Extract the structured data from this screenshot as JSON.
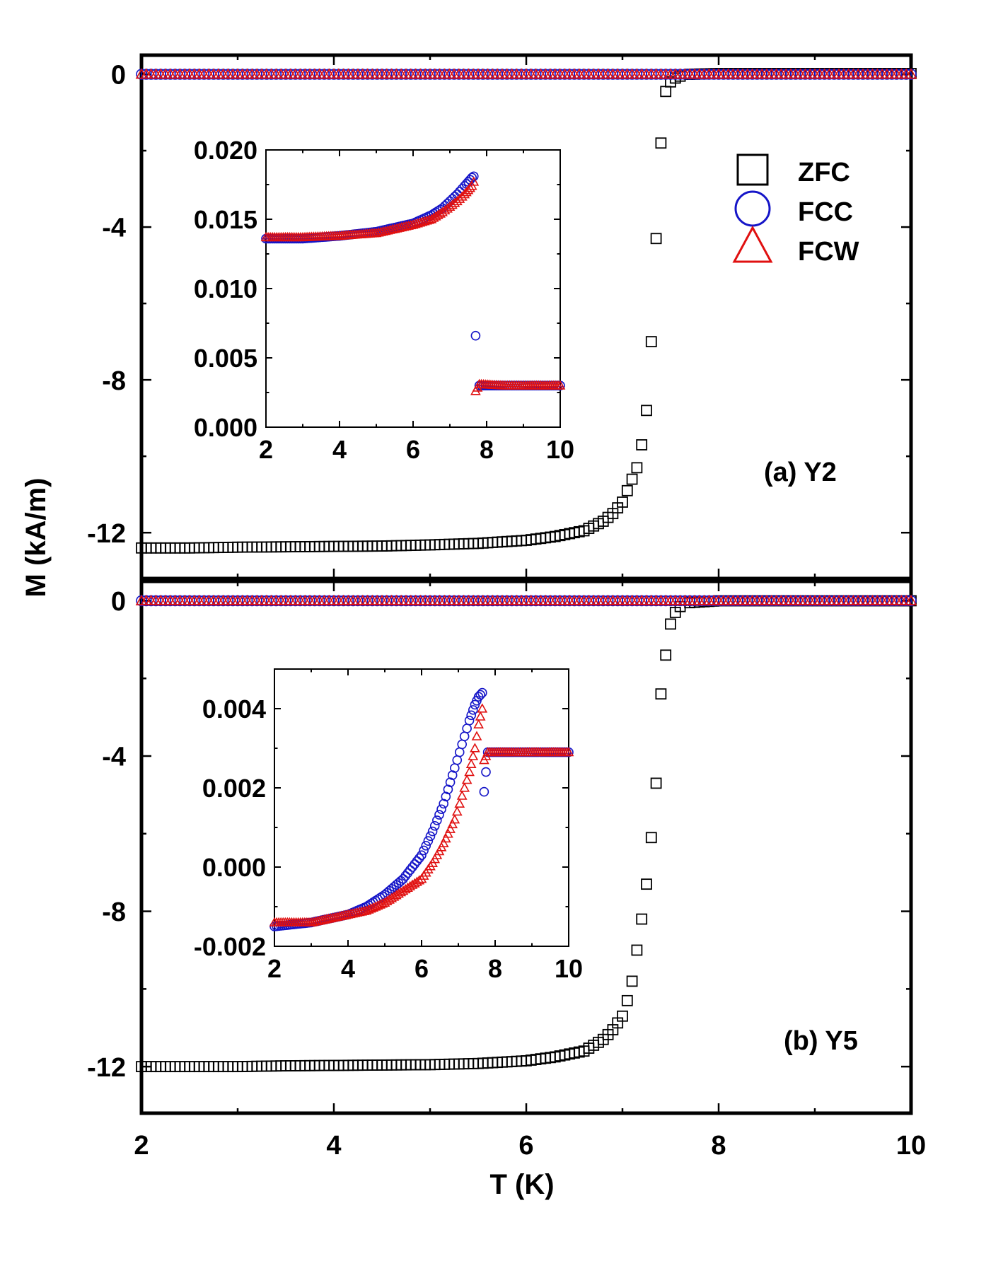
{
  "figure": {
    "ylabel": "M (kA/m)",
    "xlabel": "T (K)",
    "legend": [
      {
        "label": "ZFC",
        "marker": "square",
        "color": "#000000"
      },
      {
        "label": "FCC",
        "marker": "circle",
        "color": "#1515c8"
      },
      {
        "label": "FCW",
        "marker": "triangle",
        "color": "#e01010"
      }
    ]
  },
  "chart_data": [
    {
      "type": "scatter",
      "panel": "(a) Y2",
      "xlim": [
        2,
        10
      ],
      "ylim": [
        -13.2,
        0.5
      ],
      "xticks": [
        2,
        4,
        6,
        8,
        10
      ],
      "yticks": [
        0,
        -4,
        -8,
        -12
      ],
      "xlabel": "T (K)",
      "ylabel": "M (kA/m)",
      "legend_position": "top-right",
      "series": [
        {
          "name": "ZFC",
          "marker": "square",
          "x": [
            2.0,
            2.5,
            3.0,
            3.5,
            4.0,
            4.5,
            5.0,
            5.5,
            6.0,
            6.3,
            6.6,
            6.8,
            6.9,
            7.0,
            7.05,
            7.1,
            7.15,
            7.2,
            7.25,
            7.3,
            7.35,
            7.4,
            7.45,
            7.5,
            7.55,
            7.6,
            7.7,
            8.0,
            10.0
          ],
          "y": [
            -12.4,
            -12.4,
            -12.38,
            -12.37,
            -12.36,
            -12.35,
            -12.32,
            -12.28,
            -12.2,
            -12.1,
            -11.95,
            -11.7,
            -11.5,
            -11.2,
            -10.9,
            -10.6,
            -10.3,
            -9.7,
            -8.8,
            -7.0,
            -4.3,
            -1.8,
            -0.45,
            -0.2,
            -0.1,
            -0.05,
            0.0,
            0.02,
            0.02
          ]
        },
        {
          "name": "FCC",
          "marker": "circle",
          "x": [
            2.0,
            4.0,
            6.0,
            8.0,
            10.0
          ],
          "y": [
            0.0,
            0.0,
            0.0,
            0.0,
            0.0
          ]
        },
        {
          "name": "FCW",
          "marker": "triangle",
          "x": [
            2.0,
            4.0,
            6.0,
            8.0,
            10.0
          ],
          "y": [
            0.0,
            0.0,
            0.0,
            0.0,
            0.0
          ]
        }
      ],
      "inset": {
        "xlim": [
          2,
          10
        ],
        "ylim": [
          0.0,
          0.02
        ],
        "xticks": [
          2,
          4,
          6,
          8,
          10
        ],
        "yticks": [
          0.0,
          0.005,
          0.01,
          0.015,
          0.02
        ],
        "ytick_labels": [
          "0.000",
          "0.005",
          "0.010",
          "0.015",
          "0.020"
        ],
        "series": [
          {
            "name": "FCC",
            "marker": "circle",
            "x": [
              2.0,
              3.0,
              4.0,
              5.0,
              5.5,
              6.0,
              6.5,
              6.8,
              7.0,
              7.2,
              7.4,
              7.5,
              7.6,
              7.65,
              7.7,
              7.8,
              8.5,
              9.0,
              10.0
            ],
            "y": [
              0.0136,
              0.0136,
              0.0138,
              0.0141,
              0.0144,
              0.0147,
              0.0153,
              0.0158,
              0.0163,
              0.0168,
              0.0174,
              0.0177,
              0.018,
              0.0181,
              0.0066,
              0.003,
              0.003,
              0.003,
              0.003
            ]
          },
          {
            "name": "FCW",
            "marker": "triangle",
            "x": [
              2.0,
              3.0,
              4.0,
              5.0,
              5.5,
              6.0,
              6.5,
              6.8,
              7.0,
              7.2,
              7.4,
              7.5,
              7.6,
              7.65,
              7.7,
              7.8,
              8.5,
              9.0,
              10.0
            ],
            "y": [
              0.0137,
              0.0137,
              0.0138,
              0.014,
              0.0143,
              0.0146,
              0.015,
              0.0155,
              0.0159,
              0.0163,
              0.0168,
              0.0171,
              0.0174,
              0.0177,
              0.0026,
              0.0031,
              0.003,
              0.003,
              0.003
            ]
          }
        ]
      }
    },
    {
      "type": "scatter",
      "panel": "(b) Y5",
      "xlim": [
        2,
        10
      ],
      "ylim": [
        -13.2,
        0.5
      ],
      "xticks": [
        2,
        4,
        6,
        8,
        10
      ],
      "yticks": [
        0,
        -4,
        -8,
        -12
      ],
      "xlabel": "T (K)",
      "ylabel": "M (kA/m)",
      "series": [
        {
          "name": "ZFC",
          "marker": "square",
          "x": [
            2.0,
            2.5,
            3.0,
            3.5,
            4.0,
            4.5,
            5.0,
            5.5,
            6.0,
            6.3,
            6.6,
            6.8,
            6.9,
            7.0,
            7.05,
            7.1,
            7.15,
            7.2,
            7.25,
            7.3,
            7.35,
            7.4,
            7.45,
            7.5,
            7.55,
            7.6,
            7.7,
            8.0,
            10.0
          ],
          "y": [
            -12.0,
            -12.0,
            -12.0,
            -11.98,
            -11.97,
            -11.96,
            -11.95,
            -11.92,
            -11.85,
            -11.75,
            -11.6,
            -11.3,
            -11.05,
            -10.7,
            -10.3,
            -9.8,
            -9.0,
            -8.2,
            -7.3,
            -6.1,
            -4.7,
            -2.4,
            -1.4,
            -0.6,
            -0.3,
            -0.15,
            -0.05,
            0.0,
            0.0
          ]
        },
        {
          "name": "FCC",
          "marker": "circle",
          "x": [
            2.0,
            4.0,
            6.0,
            8.0,
            10.0
          ],
          "y": [
            0.0,
            0.0,
            0.0,
            0.0,
            0.0
          ]
        },
        {
          "name": "FCW",
          "marker": "triangle",
          "x": [
            2.0,
            4.0,
            6.0,
            8.0,
            10.0
          ],
          "y": [
            0.0,
            0.0,
            0.0,
            0.0,
            0.0
          ]
        }
      ],
      "inset": {
        "xlim": [
          2,
          10
        ],
        "ylim": [
          -0.002,
          0.005
        ],
        "xticks": [
          2,
          4,
          6,
          8,
          10
        ],
        "yticks": [
          -0.002,
          0.0,
          0.002,
          0.004
        ],
        "ytick_labels": [
          "-0.002",
          "0.000",
          "0.002",
          "0.004"
        ],
        "series": [
          {
            "name": "FCC",
            "marker": "circle",
            "x": [
              2.0,
              3.0,
              4.0,
              4.5,
              5.0,
              5.5,
              6.0,
              6.3,
              6.6,
              6.9,
              7.1,
              7.3,
              7.45,
              7.55,
              7.65,
              7.7,
              7.8,
              8.5,
              9.0,
              10.0
            ],
            "y": [
              -0.0015,
              -0.0014,
              -0.0012,
              -0.001,
              -0.0007,
              -0.0003,
              0.0003,
              0.0009,
              0.0016,
              0.0025,
              0.0031,
              0.0037,
              0.0041,
              0.0043,
              0.0044,
              0.0019,
              0.0029,
              0.0029,
              0.0029,
              0.0029
            ]
          },
          {
            "name": "FCW",
            "marker": "triangle",
            "x": [
              2.0,
              3.0,
              4.0,
              4.5,
              5.0,
              5.5,
              6.0,
              6.3,
              6.6,
              6.9,
              7.1,
              7.3,
              7.45,
              7.55,
              7.65,
              7.7,
              7.8,
              8.5,
              9.0,
              10.0
            ],
            "y": [
              -0.0014,
              -0.0014,
              -0.0012,
              -0.0011,
              -0.0009,
              -0.0006,
              -0.0003,
              0.0001,
              0.0006,
              0.0012,
              0.0018,
              0.0024,
              0.003,
              0.0036,
              0.004,
              0.0027,
              0.0029,
              0.0029,
              0.0029,
              0.0029
            ]
          }
        ]
      }
    }
  ]
}
